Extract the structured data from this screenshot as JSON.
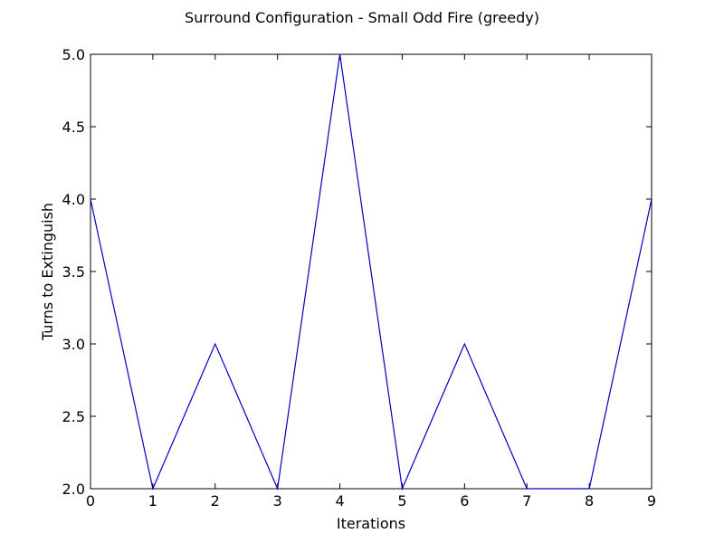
{
  "chart_data": {
    "type": "line",
    "title": "Surround Configuration - Small Odd Fire (greedy)",
    "xlabel": "Iterations",
    "ylabel": "Turns to Extinguish",
    "xlim": [
      0,
      9
    ],
    "ylim": [
      2.0,
      5.0
    ],
    "x_ticks": [
      "0",
      "1",
      "2",
      "3",
      "4",
      "5",
      "6",
      "7",
      "8",
      "9"
    ],
    "y_ticks": [
      "2.0",
      "2.5",
      "3.0",
      "3.5",
      "4.0",
      "4.5",
      "5.0"
    ],
    "grid": false,
    "legend": "none",
    "series": [
      {
        "color": "#0000bf",
        "x": [
          0,
          1,
          2,
          3,
          4,
          5,
          6,
          7,
          8,
          9
        ],
        "y": [
          4,
          2,
          3,
          2,
          5,
          2,
          3,
          2,
          2,
          4
        ]
      }
    ]
  }
}
